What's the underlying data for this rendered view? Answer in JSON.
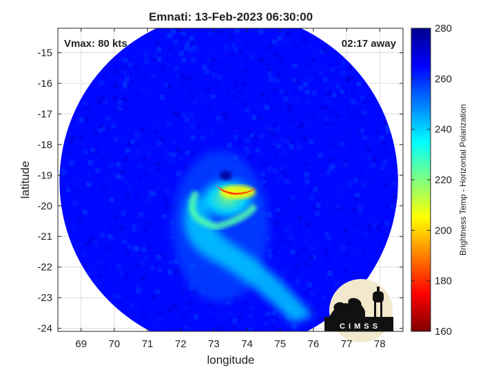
{
  "chart_data": {
    "type": "heatmap",
    "title": "Emnati: 13-Feb-2023 06:30:00",
    "annotations": {
      "vmax": "Vmax: 80 kts",
      "time_away": "02:17 away"
    },
    "xlabel": "longitude",
    "ylabel": "latitude",
    "xlim": [
      68.3,
      78.7
    ],
    "ylim": [
      -24.1,
      -14.2
    ],
    "xticks": [
      69,
      70,
      71,
      72,
      73,
      74,
      75,
      76,
      77,
      78
    ],
    "yticks": [
      -15,
      -16,
      -17,
      -18,
      -19,
      -20,
      -21,
      -22,
      -23,
      -24
    ],
    "grid": true,
    "colorbar": {
      "label": "Brightness Temp - Horizontal Polarization",
      "range": [
        160,
        280
      ],
      "ticks": [
        280,
        260,
        240,
        220,
        200,
        180,
        160
      ],
      "colormap": "jet",
      "colors": [
        "#7f0000",
        "#ff0000",
        "#ff7f00",
        "#ffff00",
        "#7fff7f",
        "#00ffff",
        "#007fff",
        "#0000ff",
        "#00008f"
      ]
    },
    "swath": {
      "center_lon": 73.45,
      "center_lat": -19.2,
      "radius_deg": 5.1
    },
    "storm": {
      "eye_lon": 73.3,
      "eye_lat": -19.1,
      "min_temp": 182,
      "background_temp": 264
    },
    "logo_text": "C I M S S"
  }
}
